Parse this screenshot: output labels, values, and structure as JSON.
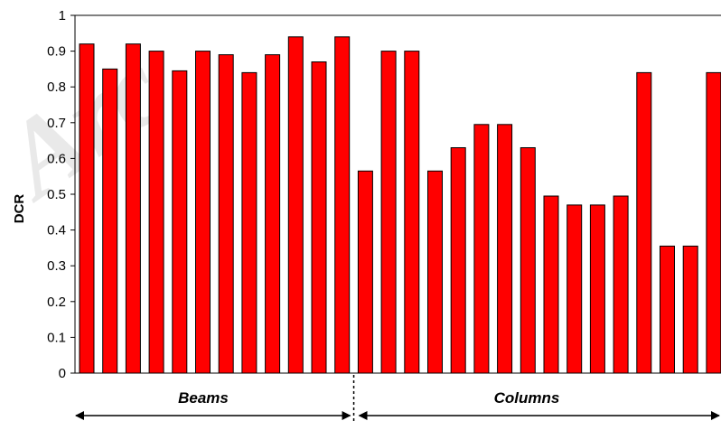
{
  "watermark_text": "Arc",
  "chart_data": {
    "type": "bar",
    "ylabel": "DCR",
    "xlabel": "",
    "ylim": [
      0,
      1
    ],
    "yticks": [
      "0",
      "0.1",
      "0.2",
      "0.3",
      "0.4",
      "0.5",
      "0.6",
      "0.7",
      "0.8",
      "0.9",
      "1"
    ],
    "grid": false,
    "bar_color": "#ff0000",
    "values": [
      0.92,
      0.85,
      0.92,
      0.9,
      0.845,
      0.9,
      0.89,
      0.84,
      0.89,
      0.94,
      0.87,
      0.94,
      0.565,
      0.9,
      0.9,
      0.565,
      0.63,
      0.695,
      0.695,
      0.63,
      0.495,
      0.47,
      0.47,
      0.495,
      0.84,
      0.355,
      0.355,
      0.84
    ],
    "groups": [
      {
        "label": "Beams",
        "start": 0,
        "end": 11
      },
      {
        "label": "Columns",
        "start": 12,
        "end": 27
      }
    ]
  }
}
